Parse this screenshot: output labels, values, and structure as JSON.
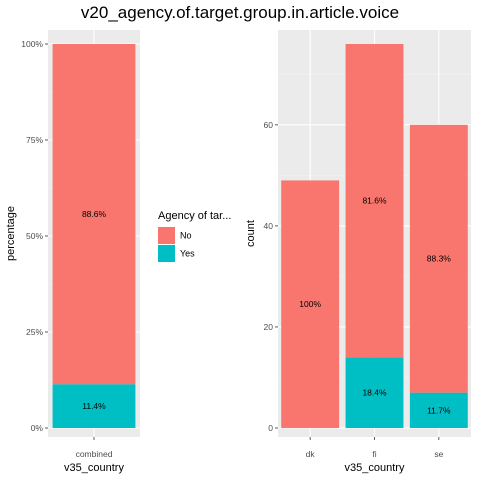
{
  "title": "v20_agency.of.target.group.in.article.voice",
  "colors": {
    "No": "#F8766D",
    "Yes": "#00BFC4",
    "panel": "#EBEBEB",
    "grid_major": "#FFFFFF",
    "grid_minor": "#F4F4F4"
  },
  "legend": {
    "title": "Agency of tar...",
    "items": [
      {
        "label": "No"
      },
      {
        "label": "Yes"
      }
    ]
  },
  "chart_data": [
    {
      "type": "bar",
      "stacked": true,
      "xlabel": "v35_country",
      "ylabel": "percentage",
      "ylim": [
        0,
        1
      ],
      "yticks": [
        "0%",
        "25%",
        "50%",
        "75%",
        "100%"
      ],
      "categories": [
        "combined"
      ],
      "series": [
        {
          "name": "No",
          "values": [
            0.886
          ],
          "labels": [
            "88.6%"
          ]
        },
        {
          "name": "Yes",
          "values": [
            0.114
          ],
          "labels": [
            "11.4%"
          ]
        }
      ]
    },
    {
      "type": "bar",
      "stacked": true,
      "xlabel": "v35_country",
      "ylabel": "count",
      "ylim": [
        0,
        76
      ],
      "yticks": [
        "0",
        "20",
        "40",
        "60"
      ],
      "categories": [
        "dk",
        "fi",
        "se"
      ],
      "series": [
        {
          "name": "No",
          "values": [
            49,
            62,
            53
          ],
          "labels": [
            "100%",
            "81.6%",
            "88.3%"
          ]
        },
        {
          "name": "Yes",
          "values": [
            0,
            14,
            7
          ],
          "labels": [
            "",
            "18.4%",
            "11.7%"
          ]
        }
      ]
    }
  ]
}
